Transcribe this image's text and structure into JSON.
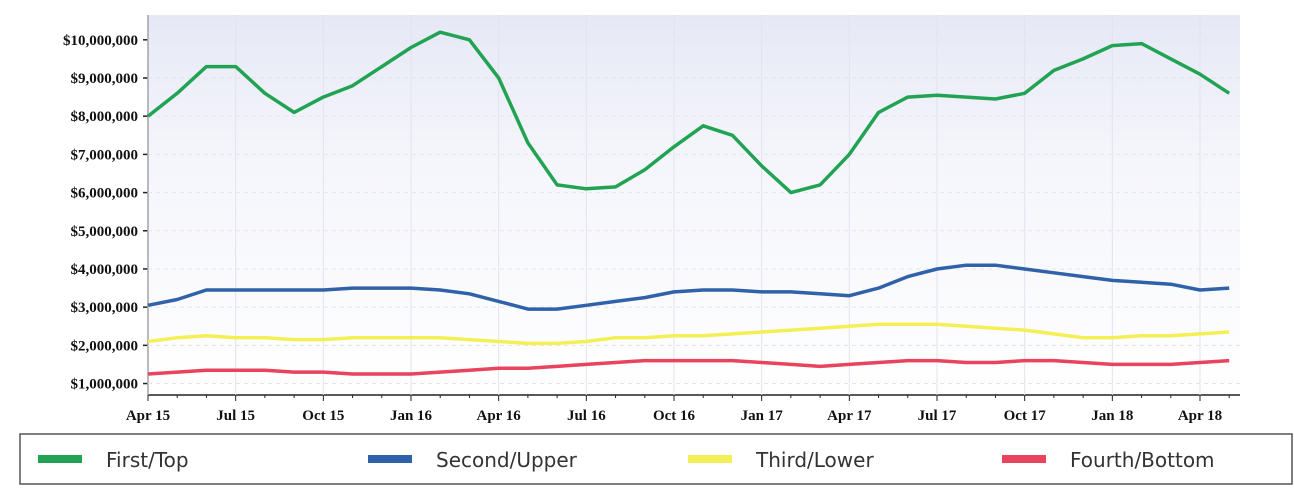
{
  "chart_data": {
    "type": "line",
    "categories": [
      "Apr 15",
      null,
      null,
      "Jul 15",
      null,
      null,
      "Oct 15",
      null,
      null,
      "Jan 16",
      null,
      null,
      "Apr 16",
      null,
      null,
      "Jul 16",
      null,
      null,
      "Oct 16",
      null,
      null,
      "Jan 17",
      null,
      null,
      "Apr 17",
      null,
      null,
      "Jul 17",
      null,
      null,
      "Oct 17",
      null,
      null,
      "Jan 18",
      null,
      null,
      "Apr 18",
      null
    ],
    "series": [
      {
        "name": "First/Top",
        "color": "#21a353",
        "values": [
          8000000,
          8600000,
          9300000,
          9300000,
          8600000,
          8100000,
          8500000,
          8800000,
          9300000,
          9800000,
          10200000,
          10000000,
          9000000,
          7300000,
          6200000,
          6100000,
          6150000,
          6600000,
          7200000,
          7750000,
          7500000,
          6700000,
          6000000,
          6200000,
          7000000,
          8100000,
          8500000,
          8550000,
          8500000,
          8450000,
          8600000,
          9200000,
          9500000,
          9850000,
          9900000,
          9500000,
          9100000,
          8600000
        ]
      },
      {
        "name": "Second/Upper",
        "color": "#2f62a8",
        "values": [
          3050000,
          3200000,
          3450000,
          3450000,
          3450000,
          3450000,
          3450000,
          3500000,
          3500000,
          3500000,
          3450000,
          3350000,
          3150000,
          2950000,
          2950000,
          3050000,
          3150000,
          3250000,
          3400000,
          3450000,
          3450000,
          3400000,
          3400000,
          3350000,
          3300000,
          3500000,
          3800000,
          4000000,
          4100000,
          4100000,
          4000000,
          3900000,
          3800000,
          3700000,
          3650000,
          3600000,
          3450000,
          3500000
        ]
      },
      {
        "name": "Third/Lower",
        "color": "#f3ef55",
        "values": [
          2100000,
          2200000,
          2250000,
          2200000,
          2200000,
          2150000,
          2150000,
          2200000,
          2200000,
          2200000,
          2200000,
          2150000,
          2100000,
          2050000,
          2050000,
          2100000,
          2200000,
          2200000,
          2250000,
          2250000,
          2300000,
          2350000,
          2400000,
          2450000,
          2500000,
          2550000,
          2550000,
          2550000,
          2500000,
          2450000,
          2400000,
          2300000,
          2200000,
          2200000,
          2250000,
          2250000,
          2300000,
          2350000
        ]
      },
      {
        "name": "Fourth/Bottom",
        "color": "#e8445e",
        "values": [
          1250000,
          1300000,
          1350000,
          1350000,
          1350000,
          1300000,
          1300000,
          1250000,
          1250000,
          1250000,
          1300000,
          1350000,
          1400000,
          1400000,
          1450000,
          1500000,
          1550000,
          1600000,
          1600000,
          1600000,
          1600000,
          1550000,
          1500000,
          1450000,
          1500000,
          1550000,
          1600000,
          1600000,
          1550000,
          1550000,
          1600000,
          1600000,
          1550000,
          1500000,
          1500000,
          1500000,
          1550000,
          1600000
        ]
      }
    ],
    "ylim": [
      700000,
      10650000
    ],
    "yticks": [
      {
        "value": 1000000,
        "label": "$1,000,000"
      },
      {
        "value": 2000000,
        "label": "$2,000,000"
      },
      {
        "value": 3000000,
        "label": "$3,000,000"
      },
      {
        "value": 4000000,
        "label": "$4,000,000"
      },
      {
        "value": 5000000,
        "label": "$5,000,000"
      },
      {
        "value": 6000000,
        "label": "$6,000,000"
      },
      {
        "value": 7000000,
        "label": "$7,000,000"
      },
      {
        "value": 8000000,
        "label": "$8,000,000"
      },
      {
        "value": 9000000,
        "label": "$9,000,000"
      },
      {
        "value": 10000000,
        "label": "$10,000,000"
      }
    ],
    "grid": true
  }
}
